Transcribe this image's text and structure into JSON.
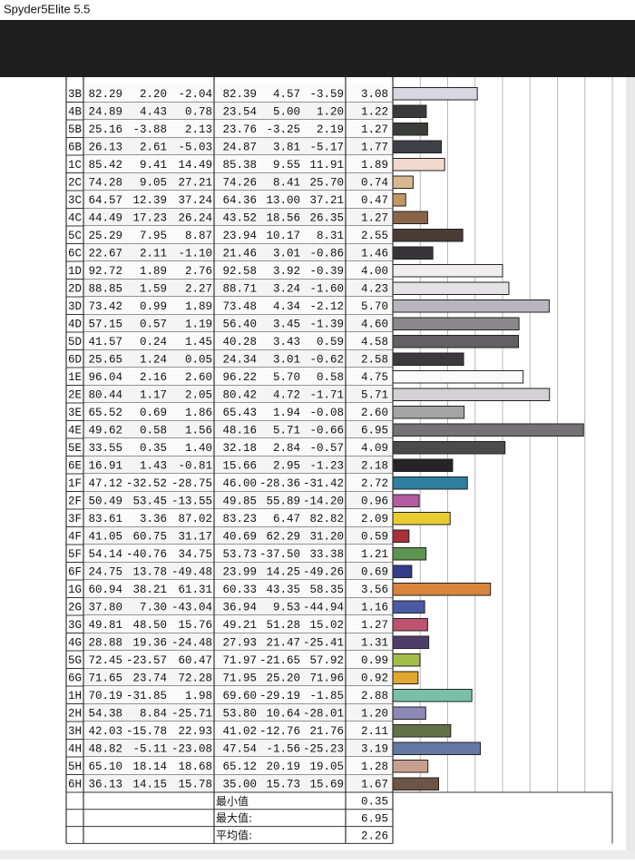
{
  "window": {
    "title": "Spyder5Elite 5.5"
  },
  "table": {
    "xlim": [
      0,
      8
    ],
    "xticks": [
      1,
      2,
      3,
      4,
      5,
      6,
      7,
      8
    ],
    "rows": [
      {
        "patch": "3B",
        "ref": [
          "82.29",
          "2.20",
          "-2.04"
        ],
        "measured": [
          "82.39",
          "4.57",
          "-3.59"
        ],
        "delta_e": "3.08",
        "color": "#d8d6df"
      },
      {
        "patch": "4B",
        "ref": [
          "24.89",
          "4.43",
          "0.78"
        ],
        "measured": [
          "23.54",
          "5.00",
          "1.20"
        ],
        "delta_e": "1.22",
        "color": "#3a3a3a"
      },
      {
        "patch": "5B",
        "ref": [
          "25.16",
          "-3.88",
          "2.13"
        ],
        "measured": [
          "23.76",
          "-3.25",
          "2.19"
        ],
        "delta_e": "1.27",
        "color": "#3a3d3a"
      },
      {
        "patch": "6B",
        "ref": [
          "26.13",
          "2.61",
          "-5.03"
        ],
        "measured": [
          "24.87",
          "3.81",
          "-5.17"
        ],
        "delta_e": "1.77",
        "color": "#3e4048"
      },
      {
        "patch": "1C",
        "ref": [
          "85.42",
          "9.41",
          "14.49"
        ],
        "measured": [
          "85.38",
          "9.55",
          "11.91"
        ],
        "delta_e": "1.89",
        "color": "#f0d8cc"
      },
      {
        "patch": "2C",
        "ref": [
          "74.28",
          "9.05",
          "27.21"
        ],
        "measured": [
          "74.26",
          "8.41",
          "25.70"
        ],
        "delta_e": "0.74",
        "color": "#d8b890"
      },
      {
        "patch": "3C",
        "ref": [
          "64.57",
          "12.39",
          "37.24"
        ],
        "measured": [
          "64.36",
          "13.00",
          "37.21"
        ],
        "delta_e": "0.47",
        "color": "#c09860"
      },
      {
        "patch": "4C",
        "ref": [
          "44.49",
          "17.23",
          "26.24"
        ],
        "measured": [
          "43.52",
          "18.56",
          "26.35"
        ],
        "delta_e": "1.27",
        "color": "#8a6448"
      },
      {
        "patch": "5C",
        "ref": [
          "25.29",
          "7.95",
          "8.87"
        ],
        "measured": [
          "23.94",
          "10.17",
          "8.31"
        ],
        "delta_e": "2.55",
        "color": "#4a3c34"
      },
      {
        "patch": "6C",
        "ref": [
          "22.67",
          "2.11",
          "-1.10"
        ],
        "measured": [
          "21.46",
          "3.01",
          "-0.86"
        ],
        "delta_e": "1.46",
        "color": "#363436"
      },
      {
        "patch": "1D",
        "ref": [
          "92.72",
          "1.89",
          "2.76"
        ],
        "measured": [
          "92.58",
          "3.92",
          "-0.39"
        ],
        "delta_e": "4.00",
        "color": "#f0eeee"
      },
      {
        "patch": "2D",
        "ref": [
          "88.85",
          "1.59",
          "2.27"
        ],
        "measured": [
          "88.71",
          "3.24",
          "-1.60"
        ],
        "delta_e": "4.23",
        "color": "#e4e2e4"
      },
      {
        "patch": "3D",
        "ref": [
          "73.42",
          "0.99",
          "1.89"
        ],
        "measured": [
          "73.48",
          "4.34",
          "-2.12"
        ],
        "delta_e": "5.70",
        "color": "#b8b6bc"
      },
      {
        "patch": "4D",
        "ref": [
          "57.15",
          "0.57",
          "1.19"
        ],
        "measured": [
          "56.40",
          "3.45",
          "-1.39"
        ],
        "delta_e": "4.60",
        "color": "#8a888c"
      },
      {
        "patch": "5D",
        "ref": [
          "41.57",
          "0.24",
          "1.45"
        ],
        "measured": [
          "40.28",
          "3.43",
          "0.59"
        ],
        "delta_e": "4.58",
        "color": "#626062"
      },
      {
        "patch": "6D",
        "ref": [
          "25.65",
          "1.24",
          "0.05"
        ],
        "measured": [
          "24.34",
          "3.01",
          "-0.62"
        ],
        "delta_e": "2.58",
        "color": "#3c3a3c"
      },
      {
        "patch": "1E",
        "ref": [
          "96.04",
          "2.16",
          "2.60"
        ],
        "measured": [
          "96.22",
          "5.70",
          "0.58"
        ],
        "delta_e": "4.75",
        "color": "#fafafa"
      },
      {
        "patch": "2E",
        "ref": [
          "80.44",
          "1.17",
          "2.05"
        ],
        "measured": [
          "80.42",
          "4.72",
          "-1.71"
        ],
        "delta_e": "5.71",
        "color": "#d4d0d6"
      },
      {
        "patch": "3E",
        "ref": [
          "65.52",
          "0.69",
          "1.86"
        ],
        "measured": [
          "65.43",
          "1.94",
          "-0.08"
        ],
        "delta_e": "2.60",
        "color": "#a4a4a4"
      },
      {
        "patch": "4E",
        "ref": [
          "49.62",
          "0.58",
          "1.56"
        ],
        "measured": [
          "48.16",
          "5.71",
          "-0.66"
        ],
        "delta_e": "6.95",
        "color": "#747274"
      },
      {
        "patch": "5E",
        "ref": [
          "33.55",
          "0.35",
          "1.40"
        ],
        "measured": [
          "32.18",
          "2.84",
          "-0.57"
        ],
        "delta_e": "4.09",
        "color": "#4c4a4c"
      },
      {
        "patch": "6E",
        "ref": [
          "16.91",
          "1.43",
          "-0.81"
        ],
        "measured": [
          "15.66",
          "2.95",
          "-1.23"
        ],
        "delta_e": "2.18",
        "color": "#262426"
      },
      {
        "patch": "1F",
        "ref": [
          "47.12",
          "-32.52",
          "-28.75"
        ],
        "measured": [
          "46.00",
          "-28.36",
          "-31.42"
        ],
        "delta_e": "2.72",
        "color": "#2e7fa0"
      },
      {
        "patch": "2F",
        "ref": [
          "50.49",
          "53.45",
          "-13.55"
        ],
        "measured": [
          "49.85",
          "55.89",
          "-14.20"
        ],
        "delta_e": "0.96",
        "color": "#b45ca0"
      },
      {
        "patch": "3F",
        "ref": [
          "83.61",
          "3.36",
          "87.02"
        ],
        "measured": [
          "83.23",
          "6.47",
          "82.82"
        ],
        "delta_e": "2.09",
        "color": "#e8cc30"
      },
      {
        "patch": "4F",
        "ref": [
          "41.05",
          "60.75",
          "31.17"
        ],
        "measured": [
          "40.69",
          "62.29",
          "31.20"
        ],
        "delta_e": "0.59",
        "color": "#a83038"
      },
      {
        "patch": "5F",
        "ref": [
          "54.14",
          "-40.76",
          "34.75"
        ],
        "measured": [
          "53.73",
          "-37.50",
          "33.38"
        ],
        "delta_e": "1.21",
        "color": "#5c9450"
      },
      {
        "patch": "6F",
        "ref": [
          "24.75",
          "13.78",
          "-49.48"
        ],
        "measured": [
          "23.99",
          "14.25",
          "-49.26"
        ],
        "delta_e": "0.69",
        "color": "#343c8c"
      },
      {
        "patch": "1G",
        "ref": [
          "60.94",
          "38.21",
          "61.31"
        ],
        "measured": [
          "60.33",
          "43.35",
          "58.35"
        ],
        "delta_e": "3.56",
        "color": "#d8843c"
      },
      {
        "patch": "2G",
        "ref": [
          "37.80",
          "7.30",
          "-43.04"
        ],
        "measured": [
          "36.94",
          "9.53",
          "-44.94"
        ],
        "delta_e": "1.16",
        "color": "#4a5aa4"
      },
      {
        "patch": "3G",
        "ref": [
          "49.81",
          "48.50",
          "15.76"
        ],
        "measured": [
          "49.21",
          "51.28",
          "15.02"
        ],
        "delta_e": "1.27",
        "color": "#bc5470"
      },
      {
        "patch": "4G",
        "ref": [
          "28.88",
          "19.36",
          "-24.48"
        ],
        "measured": [
          "27.93",
          "21.47",
          "-25.41"
        ],
        "delta_e": "1.31",
        "color": "#503c68"
      },
      {
        "patch": "5G",
        "ref": [
          "72.45",
          "-23.57",
          "60.47"
        ],
        "measured": [
          "71.97",
          "-21.65",
          "57.92"
        ],
        "delta_e": "0.99",
        "color": "#a4bc48"
      },
      {
        "patch": "6G",
        "ref": [
          "71.65",
          "23.74",
          "72.28"
        ],
        "measured": [
          "71.95",
          "25.20",
          "71.96"
        ],
        "delta_e": "0.92",
        "color": "#e0a830"
      },
      {
        "patch": "1H",
        "ref": [
          "70.19",
          "-31.85",
          "1.98"
        ],
        "measured": [
          "69.60",
          "-29.19",
          "-1.85"
        ],
        "delta_e": "2.88",
        "color": "#78c0a8"
      },
      {
        "patch": "2H",
        "ref": [
          "54.38",
          "8.84",
          "-25.71"
        ],
        "measured": [
          "53.80",
          "10.64",
          "-28.01"
        ],
        "delta_e": "1.20",
        "color": "#8c88b8"
      },
      {
        "patch": "3H",
        "ref": [
          "42.03",
          "-15.78",
          "22.93"
        ],
        "measured": [
          "41.02",
          "-12.76",
          "21.76"
        ],
        "delta_e": "2.11",
        "color": "#647048"
      },
      {
        "patch": "4H",
        "ref": [
          "48.82",
          "-5.11",
          "-23.08"
        ],
        "measured": [
          "47.54",
          "-1.56",
          "-25.23"
        ],
        "delta_e": "3.19",
        "color": "#6478a4"
      },
      {
        "patch": "5H",
        "ref": [
          "65.10",
          "18.14",
          "18.68"
        ],
        "measured": [
          "65.12",
          "20.19",
          "19.05"
        ],
        "delta_e": "1.28",
        "color": "#c8a090"
      },
      {
        "patch": "6H",
        "ref": [
          "36.13",
          "14.15",
          "15.78"
        ],
        "measured": [
          "35.00",
          "15.73",
          "15.69"
        ],
        "delta_e": "1.67",
        "color": "#6c5448"
      }
    ],
    "summary": [
      {
        "label": "最小值",
        "value": "0.35"
      },
      {
        "label": "最大值:",
        "value": "6.95"
      },
      {
        "label": "平均值:",
        "value": "2.26"
      }
    ]
  }
}
